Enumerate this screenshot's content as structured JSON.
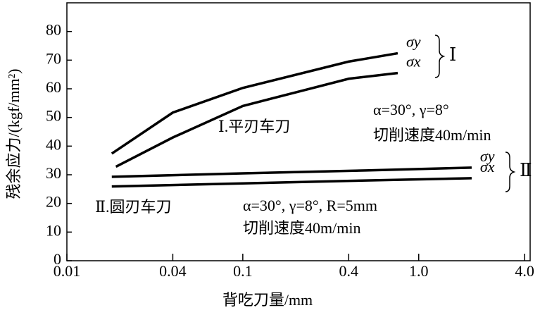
{
  "chart_data": {
    "type": "line",
    "xlabel": "背吃刀量/mm",
    "ylabel": "残余应力/(kgf/mm²)",
    "xscale": "log",
    "xlim": [
      0.01,
      4.3
    ],
    "ylim": [
      0,
      90
    ],
    "xticks": [
      0.01,
      0.04,
      0.1,
      0.4,
      {
        "value": 1,
        "label": "1.0"
      },
      {
        "value": 4,
        "label": "4.0"
      }
    ],
    "yticks": [
      0,
      10,
      20,
      30,
      40,
      50,
      60,
      70,
      80
    ],
    "color": "#000000",
    "series": [
      {
        "name": "σy",
        "x": [
          0.018,
          0.04,
          0.1,
          0.4,
          0.76
        ],
        "values": [
          37.4,
          51.7,
          60.3,
          69.5,
          72.4
        ]
      },
      {
        "name": "σx",
        "x": [
          0.019,
          0.04,
          0.1,
          0.4,
          0.76
        ],
        "values": [
          32.8,
          43,
          54,
          63.5,
          65.5
        ]
      },
      {
        "name": "σy",
        "x": [
          0.018,
          0.1,
          0.5,
          2.0
        ],
        "values": [
          29.3,
          30.5,
          31.5,
          32.5
        ]
      },
      {
        "name": "σx",
        "x": [
          0.018,
          0.1,
          0.5,
          2.0
        ],
        "values": [
          25.9,
          27,
          28,
          28.8
        ]
      }
    ],
    "annotations": {
      "group1": "Ⅰ",
      "group2": "Ⅱ",
      "tool1": "Ⅰ.平刃车刀",
      "tool1_angles": "α=30°, γ=8°",
      "tool1_speed": "切削速度40m/min",
      "tool2": "Ⅱ.圆刃车刀",
      "tool2_angles": "α=30°, γ=8°, R=5mm",
      "tool2_speed": "切削速度40m/min"
    }
  }
}
